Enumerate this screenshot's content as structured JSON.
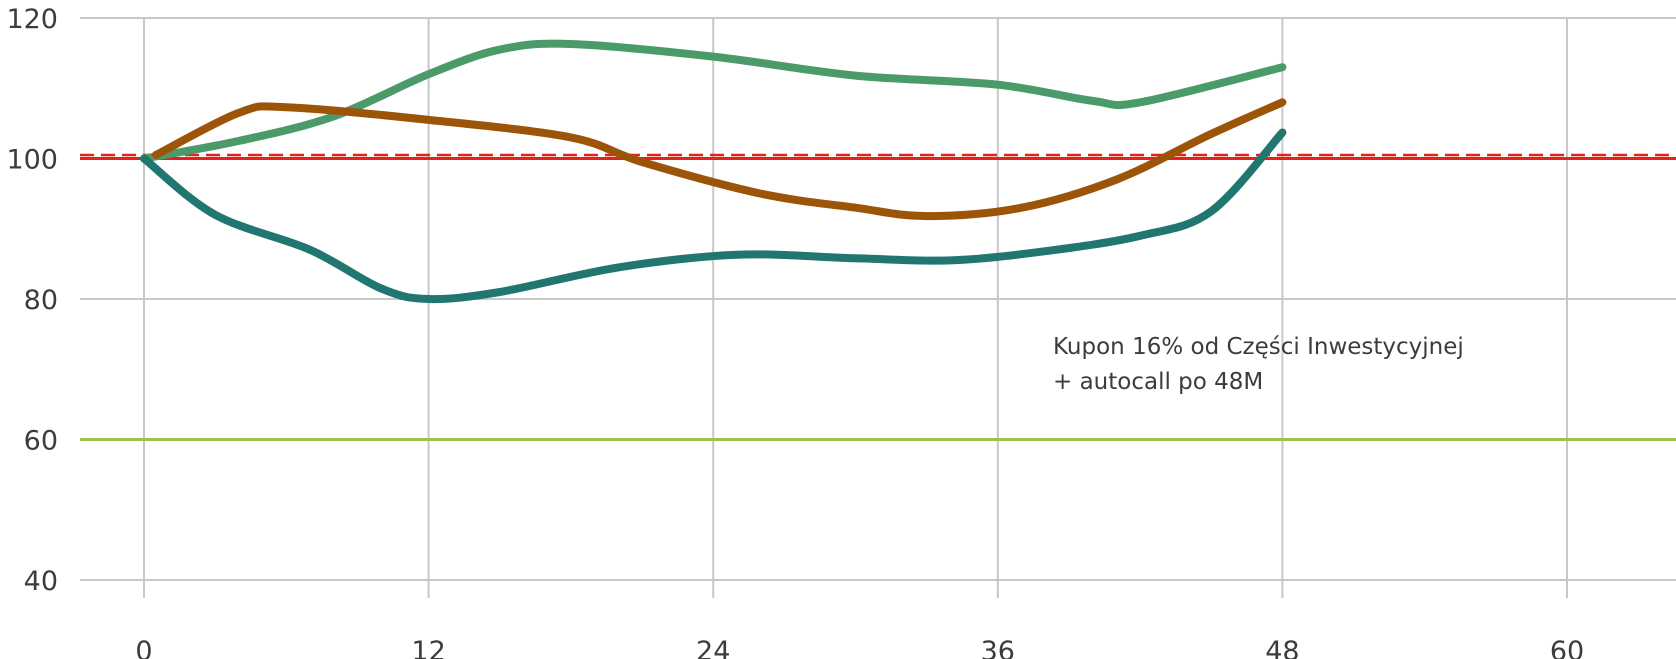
{
  "chart_data": {
    "type": "line",
    "xlim": [
      0,
      64
    ],
    "ylim": [
      40,
      120
    ],
    "x_ticks": [
      "0",
      "12",
      "24",
      "36",
      "48",
      "60"
    ],
    "y_ticks": [
      "40",
      "60",
      "80",
      "100",
      "120"
    ],
    "grid": true,
    "annotation": {
      "line1": "Kupon 16% od Części Inwestycyjnej",
      "line2": "+ autocall po 48M"
    },
    "reference_lines": [
      {
        "id": "level-100-solid",
        "y": 100,
        "color": "#e8201a",
        "style": "solid"
      },
      {
        "id": "level-100-dashed",
        "y": 100.5,
        "color": "#e8201a",
        "style": "dashed"
      },
      {
        "id": "barrier-60",
        "y": 60,
        "color": "#9bc24a",
        "style": "solid"
      }
    ],
    "series": [
      {
        "color": "#4a9a6a",
        "points": [
          [
            0,
            100
          ],
          [
            4,
            102.5
          ],
          [
            8,
            106
          ],
          [
            12,
            112
          ],
          [
            15,
            115.5
          ],
          [
            18,
            116.3
          ],
          [
            24,
            114.5
          ],
          [
            30,
            111.8
          ],
          [
            36,
            110.5
          ],
          [
            40,
            108.2
          ],
          [
            42,
            108
          ],
          [
            48,
            113
          ]
        ]
      },
      {
        "color": "#9c5508",
        "points": [
          [
            0.5,
            100.5
          ],
          [
            4,
            106.5
          ],
          [
            6,
            107.3
          ],
          [
            12,
            105.5
          ],
          [
            18,
            103
          ],
          [
            21,
            99.5
          ],
          [
            26,
            95
          ],
          [
            30,
            93
          ],
          [
            33,
            91.8
          ],
          [
            37,
            93
          ],
          [
            41,
            97
          ],
          [
            45,
            103.5
          ],
          [
            48,
            108
          ]
        ]
      },
      {
        "color": "#217670",
        "points": [
          [
            0,
            100
          ],
          [
            3,
            92
          ],
          [
            7,
            87
          ],
          [
            10,
            81.5
          ],
          [
            12,
            80
          ],
          [
            15,
            81
          ],
          [
            20,
            84.5
          ],
          [
            25,
            86.3
          ],
          [
            30,
            85.8
          ],
          [
            34,
            85.5
          ],
          [
            38,
            86.8
          ],
          [
            42,
            89
          ],
          [
            45,
            92.5
          ],
          [
            48,
            103.7
          ]
        ]
      }
    ]
  }
}
